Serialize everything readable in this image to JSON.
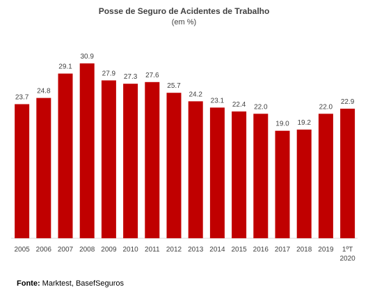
{
  "chart_data": {
    "type": "bar",
    "title": "Posse de Seguro de Acidentes de Trabalho",
    "subtitle": "(em %)",
    "categories": [
      [
        "2005"
      ],
      [
        "2006"
      ],
      [
        "2007"
      ],
      [
        "2008"
      ],
      [
        "2009"
      ],
      [
        "2010"
      ],
      [
        "2011"
      ],
      [
        "2012"
      ],
      [
        "2013"
      ],
      [
        "2014"
      ],
      [
        "2015"
      ],
      [
        "2016"
      ],
      [
        "2017"
      ],
      [
        "2018"
      ],
      [
        "2019"
      ],
      [
        "1ºT",
        "2020"
      ]
    ],
    "values": [
      23.7,
      24.8,
      29.1,
      30.9,
      27.9,
      27.3,
      27.6,
      25.7,
      24.2,
      23.1,
      22.4,
      22.0,
      19.0,
      19.2,
      22.0,
      22.9
    ],
    "value_labels": [
      "23.7",
      "24.8",
      "29.1",
      "30.9",
      "27.9",
      "27.3",
      "27.6",
      "25.7",
      "24.2",
      "23.1",
      "22.4",
      "22.0",
      "19.0",
      "19.2",
      "22.0",
      "22.9"
    ],
    "ylim": [
      0,
      30.9
    ],
    "bar_color": "#C00000",
    "grid": false,
    "legend": "none"
  },
  "source": {
    "label": "Fonte:",
    "text": " Marktest, BasefSeguros"
  }
}
